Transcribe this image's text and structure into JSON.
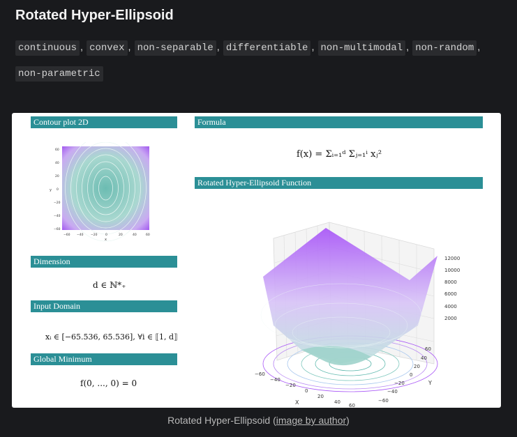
{
  "title": "Rotated Hyper-Ellipsoid",
  "tags": [
    "continuous",
    "convex",
    "non-separable",
    "differentiable",
    "non-multimodal",
    "non-random",
    "non-parametric"
  ],
  "tag_separator": ",",
  "figure": {
    "contour_header": "Contour plot 2D",
    "formula_header": "Formula",
    "function_header": "Rotated Hyper-Ellipsoid Function",
    "dimension_header": "Dimension",
    "input_domain_header": "Input Domain",
    "global_minimum_header": "Global Minimum",
    "formula_text": "f(x) = Σᵢ₌₁ᵈ Σⱼ₌₁ⁱ xⱼ²",
    "dimension_text": "d ∈ ℕ*₊",
    "input_domain_text": "xᵢ ∈ [−65.536, 65.536], ∀i ∈ ⟦1, d⟧",
    "global_minimum_text": "f(0, ..., 0) = 0",
    "contour_axes": {
      "xlabel": "x",
      "ylabel": "y",
      "xticks": [
        "−60",
        "−40",
        "−20",
        "0",
        "20",
        "40",
        "60"
      ],
      "yticks": [
        "60",
        "40",
        "20",
        "0",
        "−20",
        "−40",
        "−60"
      ]
    },
    "surface_axes": {
      "xlabel": "X",
      "ylabel": "Y",
      "xticks": [
        "−60",
        "−40",
        "−20",
        "0",
        "20",
        "40",
        "60"
      ],
      "yticks": [
        "60",
        "40",
        "20",
        "0",
        "−20",
        "−40",
        "−60"
      ],
      "zticks": [
        "12000",
        "10000",
        "8000",
        "6000",
        "4000",
        "2000"
      ]
    },
    "colors": {
      "header": "#2b8f96",
      "teal": "#5fb9b0",
      "purple": "#a855f7"
    }
  },
  "caption": {
    "prefix": "Rotated Hyper-Ellipsoid (",
    "link": "image by author",
    "suffix": ")"
  }
}
